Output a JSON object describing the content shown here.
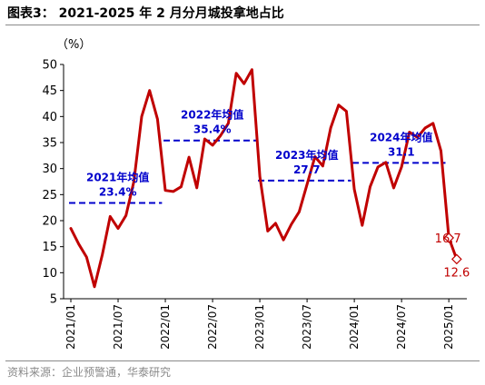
{
  "figure": {
    "title": "图表3： 2021-2025 年 2 月分月城投拿地占比",
    "source": "资料来源：企业预警通，华泰研究"
  },
  "chart_data": {
    "type": "line",
    "ylabel": "（%）",
    "ylim": [
      5,
      50
    ],
    "yticks": [
      5,
      10,
      15,
      20,
      25,
      30,
      35,
      40,
      45,
      50
    ],
    "xtick_labels": [
      "2021/01",
      "2021/07",
      "2022/01",
      "2022/07",
      "2023/01",
      "2023/07",
      "2024/01",
      "2024/07",
      "2025/01"
    ],
    "xtick_index": [
      0,
      6,
      12,
      18,
      24,
      30,
      36,
      42,
      48
    ],
    "colors": {
      "line": "#C00000",
      "avg": "#0000CC",
      "label": "#0000CC",
      "endpoint_label": "#C00000"
    },
    "series": [
      {
        "values": [
          18.5,
          15.5,
          13,
          7.3,
          13.5,
          20.8,
          18.5,
          21,
          27.5,
          40,
          45,
          39.5,
          25.8,
          25.6,
          26.5,
          32.2,
          26.3,
          35.7,
          34.5,
          36.3,
          38.7,
          48.3,
          46.3,
          49,
          28.5,
          18,
          19.5,
          16.3,
          19.3,
          21.7,
          27,
          32.3,
          30.5,
          37.8,
          42.2,
          41,
          26,
          19.1,
          26.5,
          30.3,
          31.2,
          26.3,
          30.3,
          37,
          36,
          37.8,
          38.7,
          33.4,
          16.7,
          12.6
        ]
      }
    ],
    "averages": [
      {
        "label": "2021年均值",
        "value": 23.4,
        "value_text": "23.4%",
        "start": 0,
        "end": 11
      },
      {
        "label": "2022年均值",
        "value": 35.4,
        "value_text": "35.4%",
        "start": 12,
        "end": 23
      },
      {
        "label": "2023年均值",
        "value": 27.7,
        "value_text": "27.7",
        "start": 24,
        "end": 35
      },
      {
        "label": "2024年均值",
        "value": 31.1,
        "value_text": "31.1",
        "start": 36,
        "end": 47
      }
    ],
    "endpoints": [
      {
        "index": 48,
        "value": 16.7,
        "label": "16.7"
      },
      {
        "index": 49,
        "value": 12.6,
        "label": "12.6"
      }
    ],
    "grid": false
  }
}
